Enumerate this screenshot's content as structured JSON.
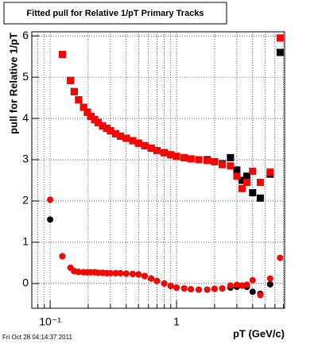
{
  "chart_data": {
    "type": "scatter",
    "title": "Fitted pull for Relative 1/pT  Primary Tracks",
    "y_label": "pull for Relative 1/pT",
    "x_label": "pT (GeV/c)",
    "footer": "Fri Oct 28 04:14:37 2011",
    "x_log": true,
    "grid": true,
    "xlim": [
      0.0716,
      7.16
    ],
    "ylim": [
      -0.6,
      6.1
    ],
    "xticks": [
      {
        "value": 0.1,
        "label": "10⁻¹"
      },
      1
    ],
    "xminor": [
      0.08,
      0.09,
      0.2,
      0.3,
      0.4,
      0.5,
      0.6,
      0.7,
      0.8,
      0.9,
      2,
      3,
      4,
      5,
      6,
      7
    ],
    "yticks": [
      0,
      1,
      2,
      3,
      4,
      5,
      6
    ],
    "x": [
      0.1,
      0.125,
      0.145,
      0.155,
      0.168,
      0.184,
      0.197,
      0.21,
      0.225,
      0.24,
      0.26,
      0.28,
      0.3,
      0.33,
      0.36,
      0.4,
      0.45,
      0.5,
      0.56,
      0.63,
      0.7,
      0.8,
      0.9,
      1.0,
      1.15,
      1.3,
      1.5,
      1.75,
      2.0,
      2.3,
      2.67,
      3.0,
      3.3,
      3.6,
      4.0,
      4.6,
      5.5,
      6.6
    ],
    "series": [
      {
        "marker": "square",
        "color": "#000000",
        "values": [
          null,
          5.55,
          4.92,
          4.65,
          4.45,
          4.27,
          4.15,
          4.05,
          3.97,
          3.9,
          3.82,
          3.76,
          3.7,
          3.63,
          3.57,
          3.52,
          3.46,
          3.4,
          3.34,
          3.28,
          3.22,
          3.17,
          3.12,
          3.08,
          3.05,
          3.02,
          3.0,
          3.0,
          2.95,
          2.9,
          3.05,
          2.75,
          2.5,
          2.6,
          2.2,
          2.07,
          2.65,
          5.6
        ]
      },
      {
        "marker": "square",
        "color": "#ff0000",
        "values": [
          null,
          5.55,
          4.92,
          4.65,
          4.45,
          4.27,
          4.15,
          4.05,
          3.97,
          3.9,
          3.82,
          3.76,
          3.7,
          3.63,
          3.57,
          3.52,
          3.46,
          3.4,
          3.34,
          3.28,
          3.22,
          3.17,
          3.12,
          3.08,
          3.05,
          3.02,
          3.0,
          2.98,
          2.95,
          2.88,
          2.85,
          2.6,
          2.3,
          2.45,
          2.72,
          2.45,
          2.7,
          5.95
        ]
      },
      {
        "marker": "circle",
        "color": "#000000",
        "values": [
          1.55,
          0.66,
          0.38,
          0.3,
          0.28,
          0.27,
          0.27,
          0.27,
          0.27,
          0.26,
          0.26,
          0.25,
          0.25,
          0.25,
          0.25,
          0.24,
          0.23,
          0.22,
          0.18,
          0.12,
          0.06,
          0.0,
          -0.06,
          -0.1,
          -0.12,
          -0.14,
          -0.15,
          -0.15,
          -0.13,
          -0.12,
          -0.1,
          -0.08,
          -0.05,
          -0.08,
          -0.2,
          -0.25,
          -0.02,
          null
        ]
      },
      {
        "marker": "circle",
        "color": "#ff0000",
        "values": [
          2.03,
          0.66,
          0.38,
          0.3,
          0.28,
          0.27,
          0.27,
          0.27,
          0.27,
          0.26,
          0.26,
          0.25,
          0.25,
          0.25,
          0.25,
          0.24,
          0.23,
          0.22,
          0.18,
          0.12,
          0.06,
          0.0,
          -0.06,
          -0.1,
          -0.12,
          -0.14,
          -0.15,
          -0.15,
          -0.13,
          -0.12,
          -0.05,
          -0.03,
          -0.05,
          -0.03,
          0.08,
          -0.28,
          0.12,
          0.62
        ]
      }
    ]
  }
}
